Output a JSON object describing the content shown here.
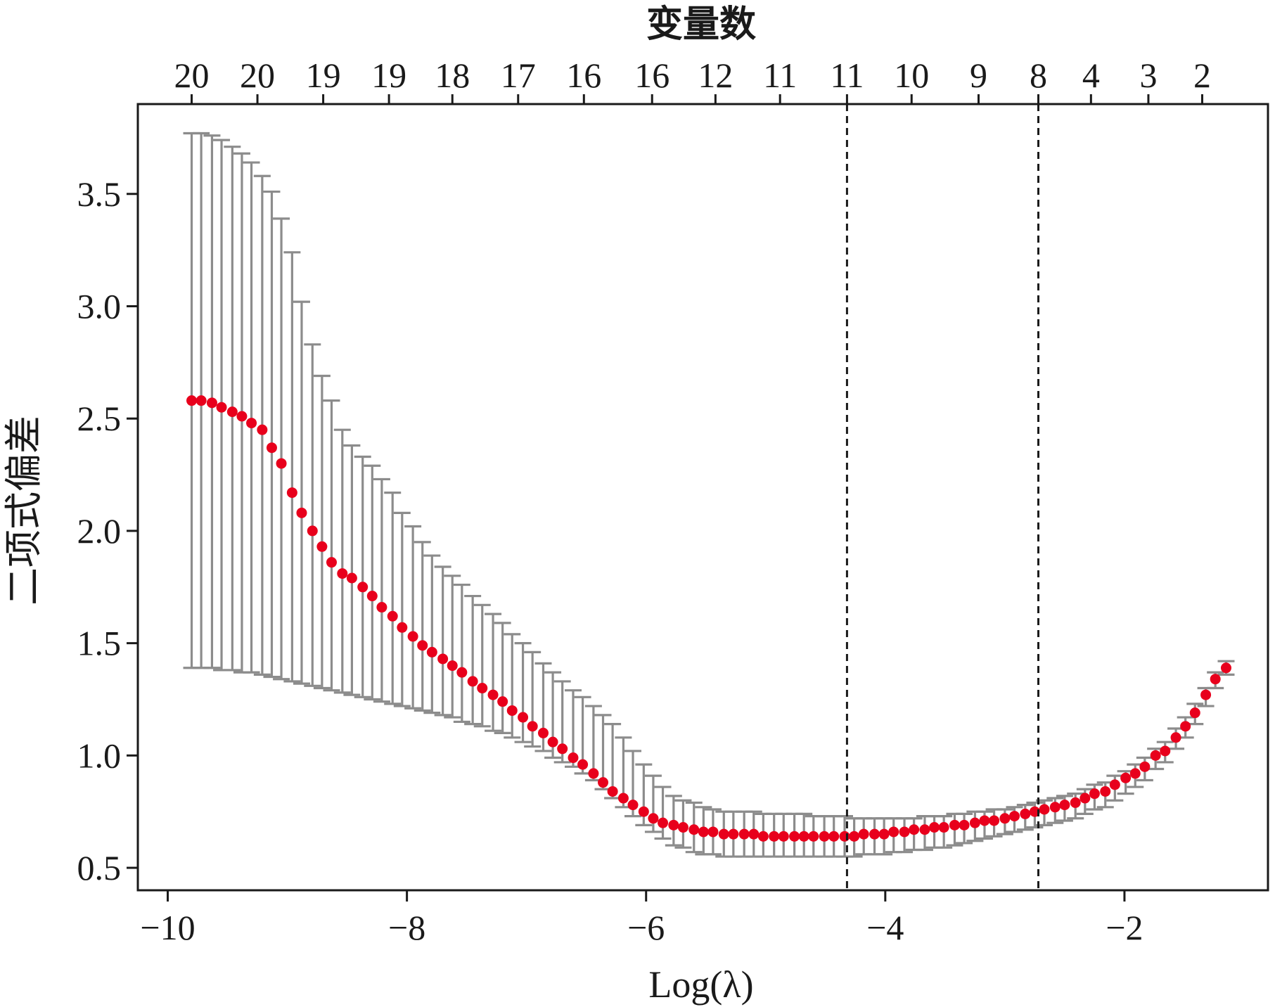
{
  "chart_data": {
    "type": "scatter",
    "title": "变量数",
    "xlabel": "Log(λ)",
    "ylabel": "二项式偏差",
    "xlim": [
      -10.25,
      -0.8
    ],
    "ylim": [
      0.4,
      3.9
    ],
    "x_ticks": [
      -10,
      -8,
      -6,
      -4,
      -2
    ],
    "x_tick_labels": [
      "−10",
      "−8",
      "−6",
      "−4",
      "−2"
    ],
    "y_ticks": [
      0.5,
      1.0,
      1.5,
      2.0,
      2.5,
      3.0,
      3.5
    ],
    "y_tick_labels": [
      "0.5",
      "1.0",
      "1.5",
      "2.0",
      "2.5",
      "3.0",
      "3.5"
    ],
    "top_ticks": [
      {
        "x": -9.8,
        "label": "20"
      },
      {
        "x": -9.25,
        "label": "20"
      },
      {
        "x": -8.7,
        "label": "19"
      },
      {
        "x": -8.15,
        "label": "19"
      },
      {
        "x": -7.62,
        "label": "18"
      },
      {
        "x": -7.07,
        "label": "17"
      },
      {
        "x": -6.52,
        "label": "16"
      },
      {
        "x": -5.95,
        "label": "16"
      },
      {
        "x": -5.42,
        "label": "12"
      },
      {
        "x": -4.88,
        "label": "11"
      },
      {
        "x": -4.32,
        "label": "11"
      },
      {
        "x": -3.78,
        "label": "10"
      },
      {
        "x": -3.22,
        "label": "9"
      },
      {
        "x": -2.72,
        "label": "8"
      },
      {
        "x": -2.28,
        "label": "4"
      },
      {
        "x": -1.8,
        "label": "3"
      },
      {
        "x": -1.35,
        "label": "2"
      }
    ],
    "vlines": [
      -4.32,
      -2.72
    ],
    "grid": false,
    "point_color": "#e8001c",
    "errorbar_color": "#8c8c8c",
    "series": [
      {
        "x": [
          -9.8,
          -9.72,
          -9.63,
          -9.55,
          -9.46,
          -9.38,
          -9.3,
          -9.21,
          -9.13,
          -9.05,
          -8.96,
          -8.88,
          -8.79,
          -8.71,
          -8.63,
          -8.54,
          -8.46,
          -8.37,
          -8.29,
          -8.21,
          -8.12,
          -8.04,
          -7.95,
          -7.87,
          -7.79,
          -7.7,
          -7.62,
          -7.54,
          -7.45,
          -7.37,
          -7.28,
          -7.2,
          -7.12,
          -7.03,
          -6.95,
          -6.86,
          -6.78,
          -6.7,
          -6.61,
          -6.53,
          -6.44,
          -6.36,
          -6.28,
          -6.19,
          -6.11,
          -6.02,
          -5.94,
          -5.86,
          -5.77,
          -5.69,
          -5.6,
          -5.52,
          -5.44,
          -5.35,
          -5.27,
          -5.18,
          -5.1,
          -5.02,
          -4.93,
          -4.85,
          -4.76,
          -4.68,
          -4.6,
          -4.51,
          -4.43,
          -4.34,
          -4.26,
          -4.18,
          -4.09,
          -4.01,
          -3.93,
          -3.84,
          -3.76,
          -3.67,
          -3.59,
          -3.51,
          -3.42,
          -3.34,
          -3.25,
          -3.17,
          -3.09,
          -3.0,
          -2.92,
          -2.83,
          -2.75,
          -2.67,
          -2.58,
          -2.5,
          -2.41,
          -2.33,
          -2.25,
          -2.16,
          -2.08,
          -1.99,
          -1.91,
          -1.83,
          -1.74,
          -1.66,
          -1.57,
          -1.49,
          -1.41,
          -1.32,
          -1.24,
          -1.15
        ],
        "y": [
          2.58,
          2.58,
          2.57,
          2.55,
          2.53,
          2.51,
          2.48,
          2.45,
          2.37,
          2.3,
          2.17,
          2.08,
          2.0,
          1.93,
          1.86,
          1.81,
          1.79,
          1.75,
          1.71,
          1.66,
          1.62,
          1.57,
          1.53,
          1.49,
          1.46,
          1.43,
          1.4,
          1.37,
          1.33,
          1.3,
          1.27,
          1.24,
          1.2,
          1.17,
          1.13,
          1.1,
          1.06,
          1.03,
          0.99,
          0.96,
          0.92,
          0.88,
          0.84,
          0.81,
          0.78,
          0.75,
          0.72,
          0.7,
          0.69,
          0.68,
          0.67,
          0.66,
          0.66,
          0.65,
          0.65,
          0.65,
          0.65,
          0.64,
          0.64,
          0.64,
          0.64,
          0.64,
          0.64,
          0.64,
          0.64,
          0.64,
          0.64,
          0.65,
          0.65,
          0.65,
          0.66,
          0.66,
          0.67,
          0.67,
          0.68,
          0.68,
          0.69,
          0.69,
          0.7,
          0.71,
          0.71,
          0.72,
          0.73,
          0.74,
          0.75,
          0.76,
          0.77,
          0.78,
          0.79,
          0.81,
          0.83,
          0.84,
          0.87,
          0.9,
          0.92,
          0.95,
          1.0,
          1.02,
          1.08,
          1.13,
          1.19,
          1.27,
          1.34,
          1.39
        ],
        "upper": [
          3.77,
          3.77,
          3.76,
          3.74,
          3.71,
          3.68,
          3.64,
          3.58,
          3.51,
          3.39,
          3.24,
          3.02,
          2.83,
          2.69,
          2.58,
          2.45,
          2.38,
          2.33,
          2.29,
          2.23,
          2.17,
          2.08,
          2.02,
          1.95,
          1.89,
          1.84,
          1.8,
          1.76,
          1.71,
          1.67,
          1.63,
          1.59,
          1.54,
          1.5,
          1.46,
          1.41,
          1.37,
          1.33,
          1.29,
          1.26,
          1.22,
          1.18,
          1.14,
          1.08,
          1.02,
          0.96,
          0.91,
          0.86,
          0.82,
          0.8,
          0.79,
          0.77,
          0.76,
          0.75,
          0.75,
          0.75,
          0.75,
          0.74,
          0.74,
          0.74,
          0.74,
          0.74,
          0.73,
          0.73,
          0.73,
          0.73,
          0.72,
          0.72,
          0.72,
          0.72,
          0.72,
          0.72,
          0.72,
          0.73,
          0.73,
          0.73,
          0.74,
          0.74,
          0.75,
          0.75,
          0.76,
          0.76,
          0.77,
          0.78,
          0.79,
          0.8,
          0.81,
          0.82,
          0.83,
          0.85,
          0.87,
          0.88,
          0.91,
          0.93,
          0.96,
          0.99,
          1.03,
          1.06,
          1.12,
          1.17,
          1.23,
          1.3,
          1.37,
          1.42
        ],
        "lower": [
          1.39,
          1.39,
          1.39,
          1.38,
          1.38,
          1.37,
          1.37,
          1.36,
          1.35,
          1.34,
          1.33,
          1.32,
          1.31,
          1.3,
          1.29,
          1.28,
          1.27,
          1.26,
          1.25,
          1.24,
          1.23,
          1.22,
          1.21,
          1.2,
          1.19,
          1.18,
          1.17,
          1.15,
          1.14,
          1.13,
          1.11,
          1.1,
          1.08,
          1.06,
          1.04,
          1.02,
          0.99,
          0.97,
          0.95,
          0.92,
          0.89,
          0.85,
          0.81,
          0.77,
          0.73,
          0.69,
          0.66,
          0.63,
          0.6,
          0.59,
          0.57,
          0.56,
          0.56,
          0.55,
          0.55,
          0.55,
          0.55,
          0.55,
          0.55,
          0.55,
          0.55,
          0.55,
          0.55,
          0.55,
          0.55,
          0.55,
          0.55,
          0.56,
          0.56,
          0.56,
          0.57,
          0.57,
          0.58,
          0.58,
          0.59,
          0.59,
          0.6,
          0.61,
          0.62,
          0.63,
          0.64,
          0.65,
          0.66,
          0.67,
          0.68,
          0.69,
          0.7,
          0.71,
          0.72,
          0.74,
          0.76,
          0.77,
          0.8,
          0.83,
          0.86,
          0.89,
          0.94,
          0.97,
          1.03,
          1.08,
          1.14,
          1.22,
          1.3,
          1.36
        ]
      }
    ]
  }
}
